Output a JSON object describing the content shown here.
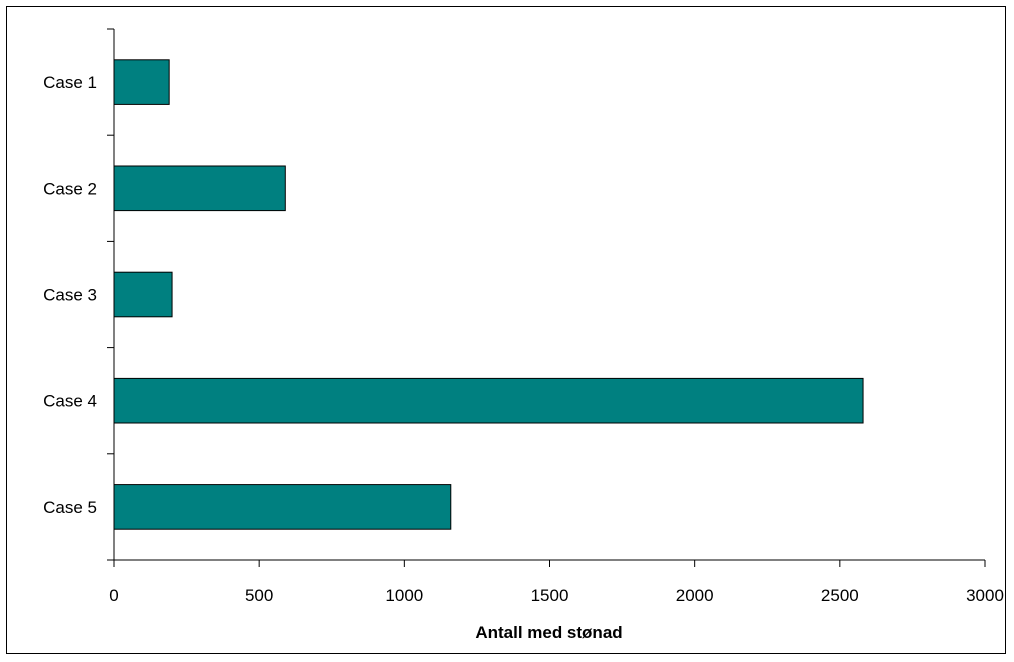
{
  "chart_data": {
    "type": "bar",
    "orientation": "horizontal",
    "categories": [
      "Case 1",
      "Case 2",
      "Case 3",
      "Case 4",
      "Case 5"
    ],
    "values": [
      190,
      590,
      200,
      2580,
      1160
    ],
    "xlabel": "Antall med stønad",
    "ylabel": "",
    "xlim": [
      0,
      3000
    ],
    "xticks": [
      "0",
      "500",
      "1000",
      "1500",
      "2000",
      "2500",
      "3000"
    ],
    "grid": false,
    "legend": "none",
    "colors": {
      "bar": "#008080",
      "bar_border": "#000000",
      "axis": "#000000"
    }
  }
}
